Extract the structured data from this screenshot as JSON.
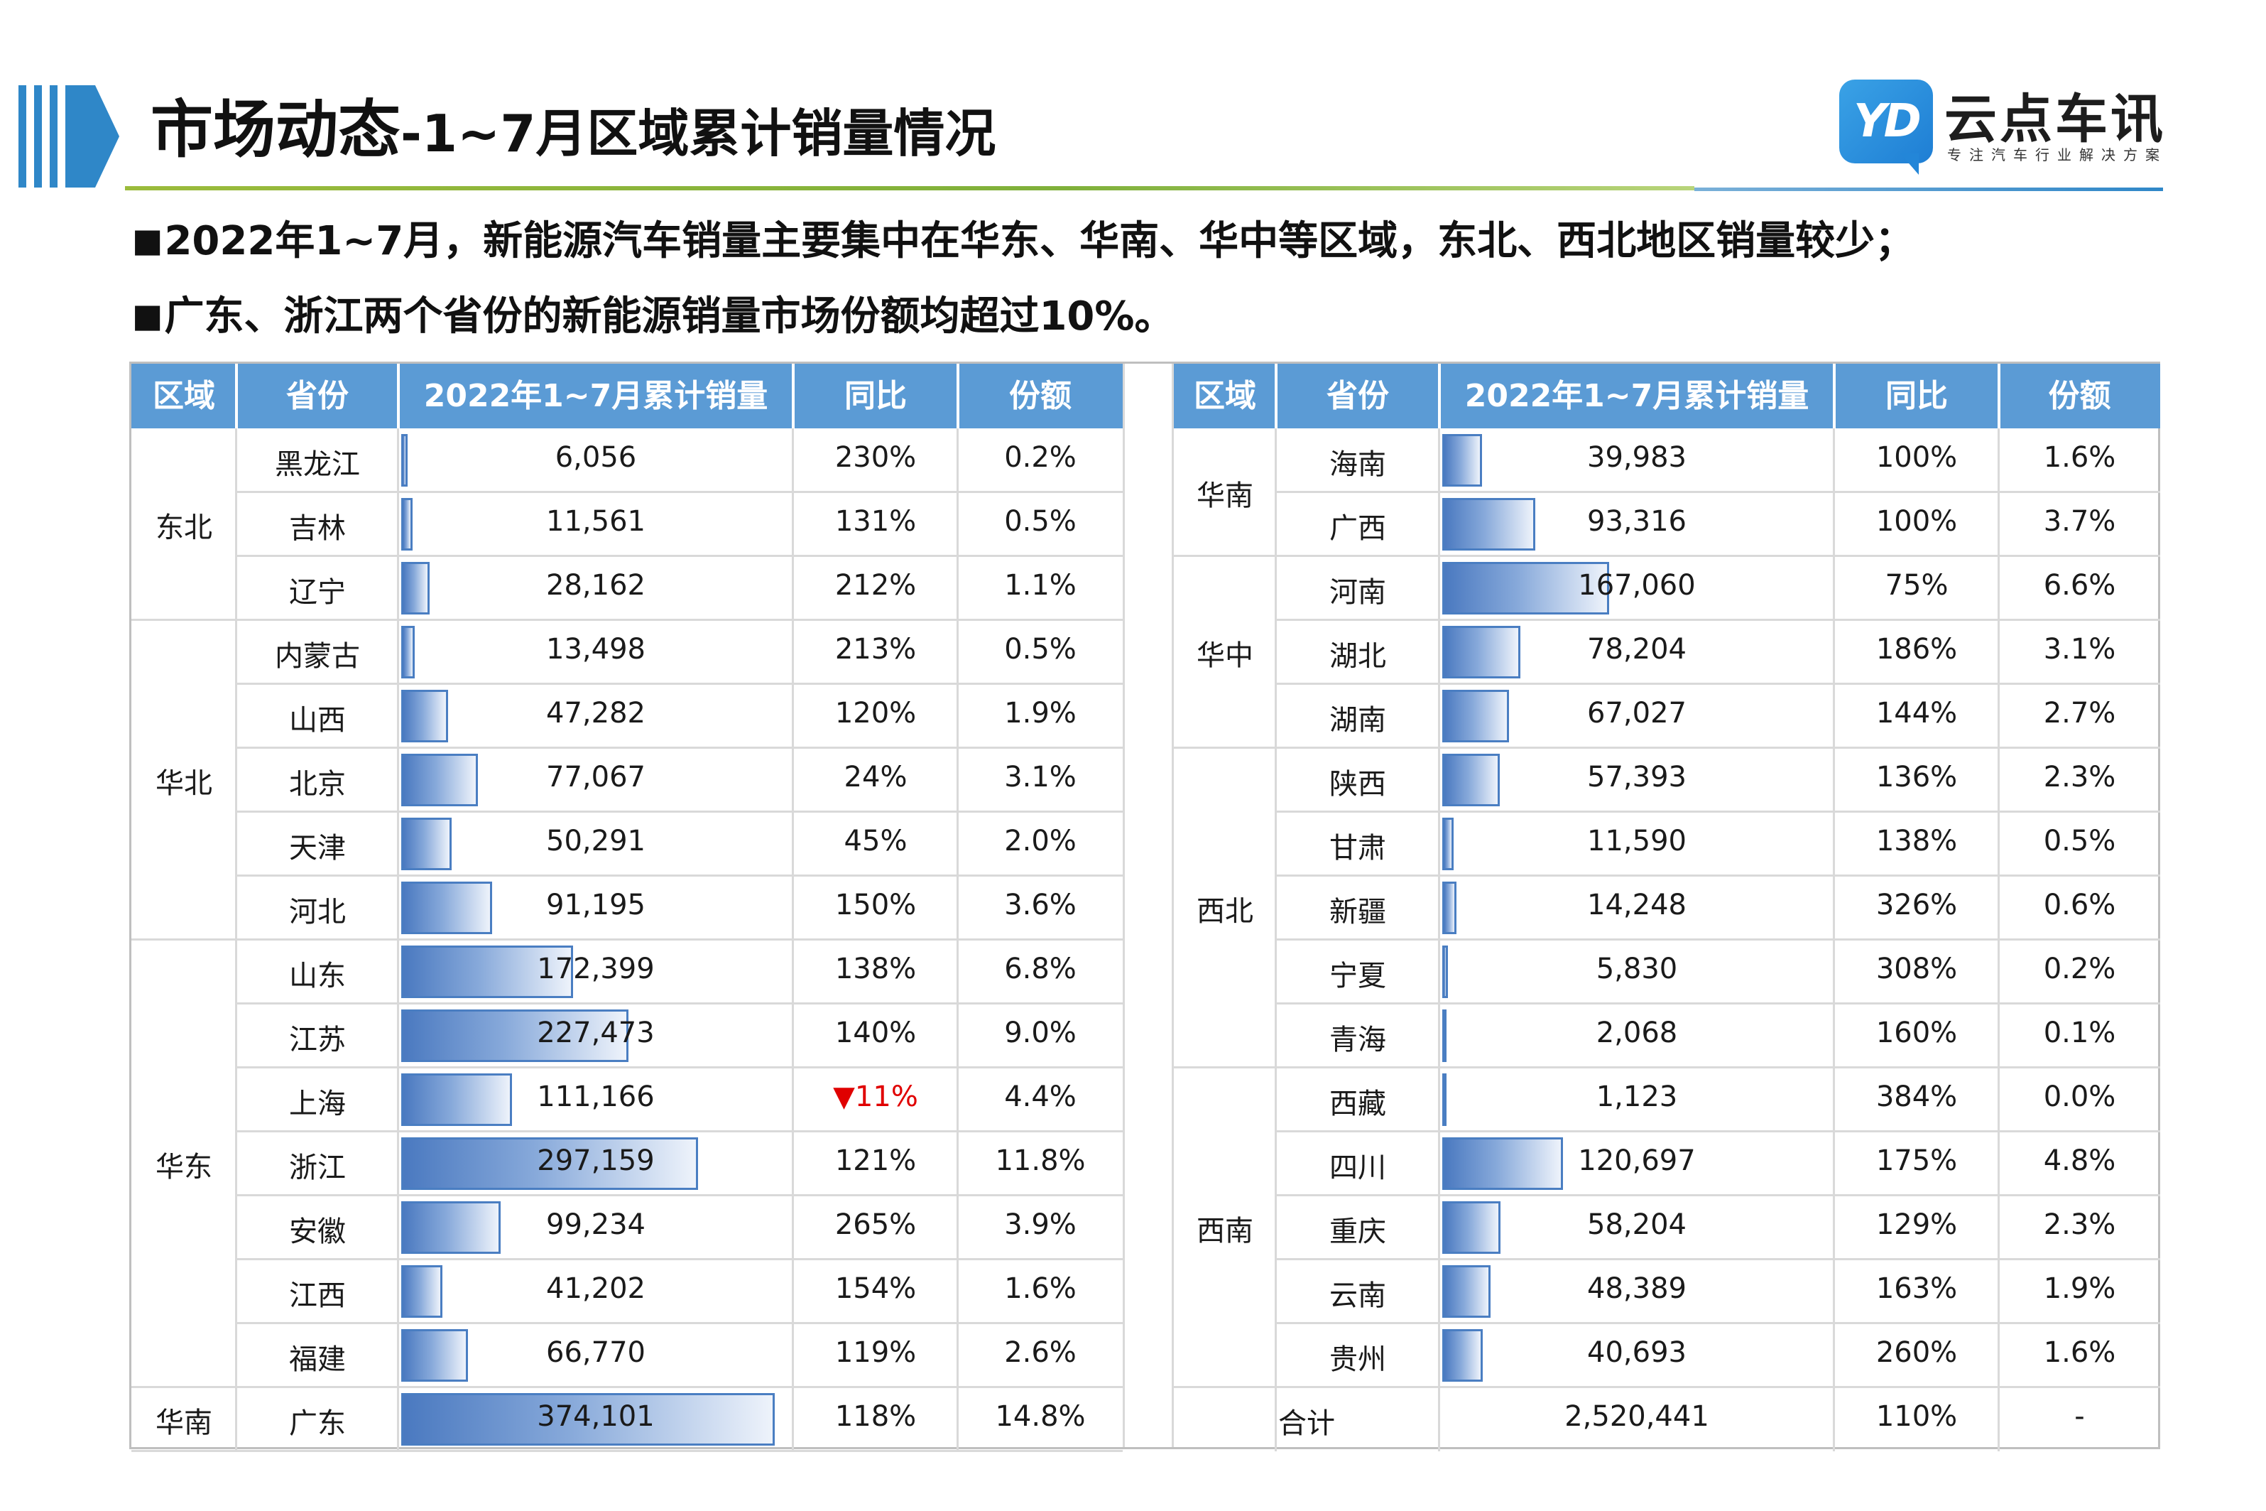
{
  "header": {
    "title_main": "市场动态",
    "title_sub": "-1~7月区域累计销量情况",
    "brand_badge": "YD",
    "brand_name": "云点车讯",
    "brand_slogan": "专注汽车行业解决方案",
    "colors": {
      "accent_green": "#8bb53c",
      "accent_blue": "#2f87c8",
      "table_header": "#5b9bd5",
      "bar": "#4a7ec2",
      "negative": "#e00000"
    }
  },
  "bullets": [
    "2022年1~7月，新能源汽车销量主要集中在华东、华南、华中等区域，东北、西北地区销量较少；",
    "广东、浙江两个省份的新能源销量市场份额均超过10%。"
  ],
  "bullet_marker": "■",
  "columns": [
    "区域",
    "省份",
    "2022年1~7月累计销量",
    "同比",
    "份额"
  ],
  "left_rows": [
    {
      "province": "黑龙江",
      "sales": "6,056",
      "sales_value": 6056,
      "yoy": "230%",
      "share": "0.2%"
    },
    {
      "province": "吉林",
      "sales": "11,561",
      "sales_value": 11561,
      "yoy": "131%",
      "share": "0.5%"
    },
    {
      "province": "辽宁",
      "sales": "28,162",
      "sales_value": 28162,
      "yoy": "212%",
      "share": "1.1%"
    },
    {
      "province": "内蒙古",
      "sales": "13,498",
      "sales_value": 13498,
      "yoy": "213%",
      "share": "0.5%"
    },
    {
      "province": "山西",
      "sales": "47,282",
      "sales_value": 47282,
      "yoy": "120%",
      "share": "1.9%"
    },
    {
      "province": "北京",
      "sales": "77,067",
      "sales_value": 77067,
      "yoy": "24%",
      "share": "3.1%"
    },
    {
      "province": "天津",
      "sales": "50,291",
      "sales_value": 50291,
      "yoy": "45%",
      "share": "2.0%"
    },
    {
      "province": "河北",
      "sales": "91,195",
      "sales_value": 91195,
      "yoy": "150%",
      "share": "3.6%"
    },
    {
      "province": "山东",
      "sales": "172,399",
      "sales_value": 172399,
      "yoy": "138%",
      "share": "6.8%"
    },
    {
      "province": "江苏",
      "sales": "227,473",
      "sales_value": 227473,
      "yoy": "140%",
      "share": "9.0%"
    },
    {
      "province": "上海",
      "sales": "111,166",
      "sales_value": 111166,
      "yoy": "▼11%",
      "yoy_negative": true,
      "share": "4.4%"
    },
    {
      "province": "浙江",
      "sales": "297,159",
      "sales_value": 297159,
      "yoy": "121%",
      "share": "11.8%"
    },
    {
      "province": "安徽",
      "sales": "99,234",
      "sales_value": 99234,
      "yoy": "265%",
      "share": "3.9%"
    },
    {
      "province": "江西",
      "sales": "41,202",
      "sales_value": 41202,
      "yoy": "154%",
      "share": "1.6%"
    },
    {
      "province": "福建",
      "sales": "66,770",
      "sales_value": 66770,
      "yoy": "119%",
      "share": "2.6%"
    },
    {
      "province": "广东",
      "sales": "374,101",
      "sales_value": 374101,
      "yoy": "118%",
      "share": "14.8%"
    }
  ],
  "left_regions": [
    {
      "name": "东北",
      "rows": 3
    },
    {
      "name": "华北",
      "rows": 5
    },
    {
      "name": "华东",
      "rows": 7
    },
    {
      "name": "华南",
      "rows": 1
    }
  ],
  "right_rows": [
    {
      "province": "海南",
      "sales": "39,983",
      "sales_value": 39983,
      "yoy": "100%",
      "share": "1.6%"
    },
    {
      "province": "广西",
      "sales": "93,316",
      "sales_value": 93316,
      "yoy": "100%",
      "share": "3.7%"
    },
    {
      "province": "河南",
      "sales": "167,060",
      "sales_value": 167060,
      "yoy": "75%",
      "share": "6.6%"
    },
    {
      "province": "湖北",
      "sales": "78,204",
      "sales_value": 78204,
      "yoy": "186%",
      "share": "3.1%"
    },
    {
      "province": "湖南",
      "sales": "67,027",
      "sales_value": 67027,
      "yoy": "144%",
      "share": "2.7%"
    },
    {
      "province": "陕西",
      "sales": "57,393",
      "sales_value": 57393,
      "yoy": "136%",
      "share": "2.3%"
    },
    {
      "province": "甘肃",
      "sales": "11,590",
      "sales_value": 11590,
      "yoy": "138%",
      "share": "0.5%"
    },
    {
      "province": "新疆",
      "sales": "14,248",
      "sales_value": 14248,
      "yoy": "326%",
      "share": "0.6%"
    },
    {
      "province": "宁夏",
      "sales": "5,830",
      "sales_value": 5830,
      "yoy": "308%",
      "share": "0.2%"
    },
    {
      "province": "青海",
      "sales": "2,068",
      "sales_value": 2068,
      "yoy": "160%",
      "share": "0.1%"
    },
    {
      "province": "西藏",
      "sales": "1,123",
      "sales_value": 1123,
      "yoy": "384%",
      "share": "0.0%"
    },
    {
      "province": "四川",
      "sales": "120,697",
      "sales_value": 120697,
      "yoy": "175%",
      "share": "4.8%"
    },
    {
      "province": "重庆",
      "sales": "58,204",
      "sales_value": 58204,
      "yoy": "129%",
      "share": "2.3%"
    },
    {
      "province": "云南",
      "sales": "48,389",
      "sales_value": 48389,
      "yoy": "163%",
      "share": "1.9%"
    },
    {
      "province": "贵州",
      "sales": "40,693",
      "sales_value": 40693,
      "yoy": "260%",
      "share": "1.6%"
    }
  ],
  "right_regions": [
    {
      "name": "华南",
      "rows": 2
    },
    {
      "name": "华中",
      "rows": 3
    },
    {
      "name": "西北",
      "rows": 5
    },
    {
      "name": "西南",
      "rows": 5
    }
  ],
  "total": {
    "label": "合计",
    "sales": "2,520,441",
    "yoy": "110%",
    "share": "-"
  },
  "bar_max": 374101
}
